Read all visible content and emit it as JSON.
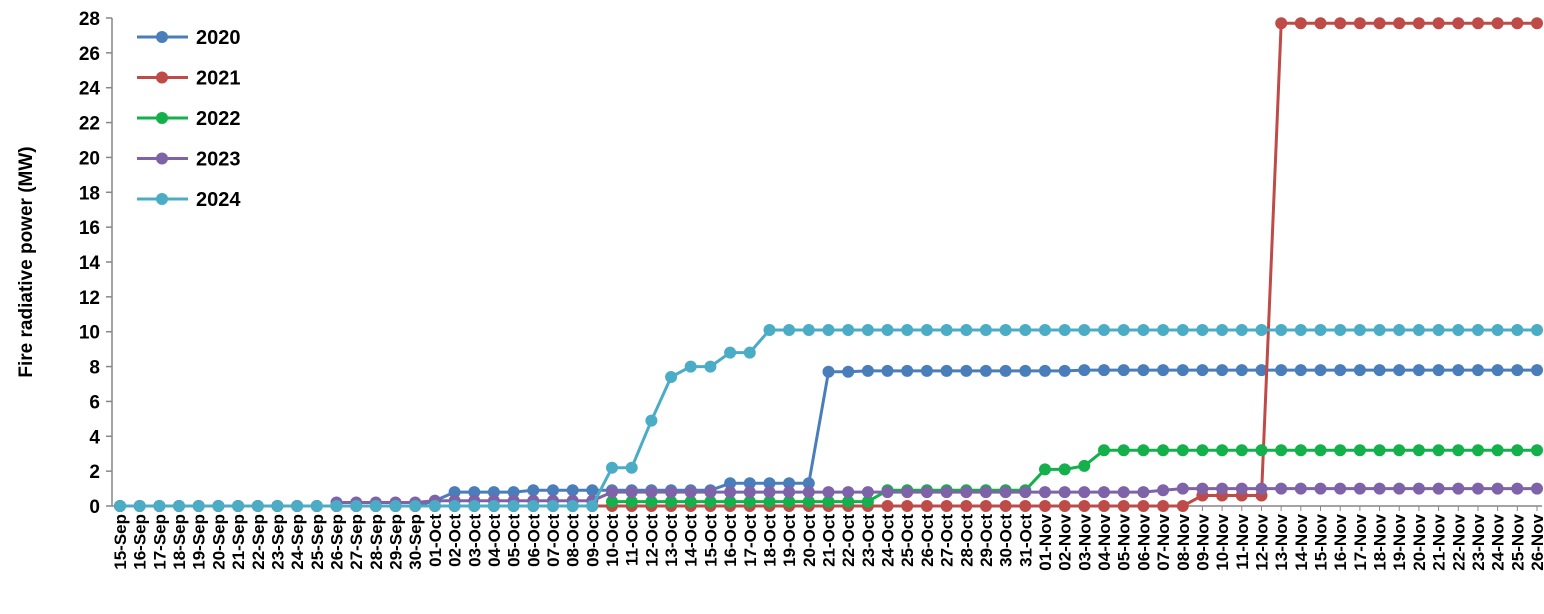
{
  "chart_data": {
    "type": "line",
    "title": "",
    "xlabel": "",
    "ylabel": "Fire radiative power (MW)",
    "ylim": [
      0,
      28
    ],
    "yticks": [
      0,
      2,
      4,
      6,
      8,
      10,
      12,
      14,
      16,
      18,
      20,
      22,
      24,
      26,
      28
    ],
    "grid": false,
    "legend_position": "top-left",
    "categories": [
      "15-Sep",
      "16-Sep",
      "17-Sep",
      "18-Sep",
      "19-Sep",
      "20-Sep",
      "21-Sep",
      "22-Sep",
      "23-Sep",
      "24-Sep",
      "25-Sep",
      "26-Sep",
      "27-Sep",
      "28-Sep",
      "29-Sep",
      "30-Sep",
      "01-Oct",
      "02-Oct",
      "03-Oct",
      "04-Oct",
      "05-Oct",
      "06-Oct",
      "07-Oct",
      "08-Oct",
      "09-Oct",
      "10-Oct",
      "11-Oct",
      "12-Oct",
      "13-Oct",
      "14-Oct",
      "15-Oct",
      "16-Oct",
      "17-Oct",
      "18-Oct",
      "19-Oct",
      "20-Oct",
      "21-Oct",
      "22-Oct",
      "23-Oct",
      "24-Oct",
      "25-Oct",
      "26-Oct",
      "27-Oct",
      "28-Oct",
      "29-Oct",
      "30-Oct",
      "31-Oct",
      "01-Nov",
      "02-Nov",
      "03-Nov",
      "04-Nov",
      "05-Nov",
      "06-Nov",
      "07-Nov",
      "08-Nov",
      "09-Nov",
      "10-Nov",
      "11-Nov",
      "12-Nov",
      "13-Nov",
      "14-Nov",
      "15-Nov",
      "16-Nov",
      "17-Nov",
      "18-Nov",
      "19-Nov",
      "20-Nov",
      "21-Nov",
      "22-Nov",
      "23-Nov",
      "24-Nov",
      "25-Nov",
      "26-Nov"
    ],
    "series": [
      {
        "name": "2020",
        "color": "#4a7ebb",
        "values": [
          0,
          0,
          0,
          0,
          0,
          0,
          0,
          0,
          0,
          0,
          0,
          0,
          0,
          0,
          0,
          0,
          0.3,
          0.8,
          0.8,
          0.8,
          0.8,
          0.9,
          0.9,
          0.9,
          0.9,
          0.9,
          0.9,
          0.9,
          0.9,
          0.9,
          0.9,
          1.3,
          1.3,
          1.3,
          1.3,
          1.3,
          7.7,
          7.7,
          7.75,
          7.75,
          7.75,
          7.75,
          7.75,
          7.75,
          7.75,
          7.75,
          7.75,
          7.75,
          7.75,
          7.8,
          7.8,
          7.8,
          7.8,
          7.8,
          7.8,
          7.8,
          7.8,
          7.8,
          7.8,
          7.8,
          7.8,
          7.8,
          7.8,
          7.8,
          7.8,
          7.8,
          7.8,
          7.8,
          7.8,
          7.8,
          7.8,
          7.8,
          7.8
        ]
      },
      {
        "name": "2021",
        "color": "#be4b48",
        "values": [
          0,
          0,
          0,
          0,
          0,
          0,
          0,
          0,
          0,
          0,
          0,
          0,
          0,
          0,
          0,
          0,
          0,
          0,
          0,
          0,
          0,
          0,
          0,
          0,
          0,
          0,
          0,
          0,
          0,
          0,
          0,
          0,
          0,
          0,
          0,
          0,
          0,
          0,
          0,
          0,
          0,
          0,
          0,
          0,
          0,
          0,
          0,
          0,
          0,
          0,
          0,
          0,
          0,
          0,
          0,
          0.6,
          0.6,
          0.6,
          0.6,
          27.7,
          27.7,
          27.7,
          27.7,
          27.7,
          27.7,
          27.7,
          27.7,
          27.7,
          27.7,
          27.7,
          27.7,
          27.7,
          27.7
        ]
      },
      {
        "name": "2022",
        "color": "#13b04b",
        "values": [
          null,
          null,
          null,
          null,
          null,
          null,
          null,
          null,
          null,
          null,
          null,
          null,
          null,
          null,
          null,
          null,
          null,
          null,
          null,
          null,
          null,
          null,
          null,
          null,
          null,
          0.25,
          0.25,
          0.25,
          0.25,
          0.25,
          0.25,
          0.25,
          0.25,
          0.25,
          0.25,
          0.25,
          0.25,
          0.25,
          0.25,
          0.9,
          0.9,
          0.9,
          0.9,
          0.9,
          0.9,
          0.9,
          0.9,
          2.1,
          2.1,
          2.3,
          3.2,
          3.2,
          3.2,
          3.2,
          3.2,
          3.2,
          3.2,
          3.2,
          3.2,
          3.2,
          3.2,
          3.2,
          3.2,
          3.2,
          3.2,
          3.2,
          3.2,
          3.2,
          3.2,
          3.2,
          3.2,
          3.2,
          3.2
        ]
      },
      {
        "name": "2023",
        "color": "#7f63a8",
        "values": [
          null,
          null,
          null,
          null,
          null,
          null,
          null,
          null,
          null,
          null,
          null,
          0.2,
          0.2,
          0.2,
          0.2,
          0.2,
          0.3,
          0.3,
          0.3,
          0.3,
          0.3,
          0.3,
          0.3,
          0.3,
          0.3,
          0.8,
          0.8,
          0.8,
          0.8,
          0.8,
          0.8,
          0.8,
          0.8,
          0.8,
          0.8,
          0.8,
          0.8,
          0.8,
          0.8,
          0.8,
          0.8,
          0.8,
          0.8,
          0.8,
          0.8,
          0.8,
          0.8,
          0.8,
          0.8,
          0.8,
          0.8,
          0.8,
          0.8,
          0.9,
          1.0,
          1.0,
          1.0,
          1.0,
          1.0,
          1.0,
          1.0,
          1.0,
          1.0,
          1.0,
          1.0,
          1.0,
          1.0,
          1.0,
          1.0,
          1.0,
          1.0,
          1.0,
          1.0
        ]
      },
      {
        "name": "2024",
        "color": "#4bacc6",
        "values": [
          0,
          0,
          0,
          0,
          0,
          0,
          0,
          0,
          0,
          0,
          0,
          0,
          0,
          0,
          0,
          0,
          0,
          0,
          0,
          0,
          0,
          0,
          0,
          0,
          0,
          2.2,
          2.2,
          4.9,
          7.4,
          8.0,
          8.0,
          8.8,
          8.8,
          10.1,
          10.1,
          10.1,
          10.1,
          10.1,
          10.1,
          10.1,
          10.1,
          10.1,
          10.1,
          10.1,
          10.1,
          10.1,
          10.1,
          10.1,
          10.1,
          10.1,
          10.1,
          10.1,
          10.1,
          10.1,
          10.1,
          10.1,
          10.1,
          10.1,
          10.1,
          10.1,
          10.1,
          10.1,
          10.1,
          10.1,
          10.1,
          10.1,
          10.1,
          10.1,
          10.1,
          10.1,
          10.1,
          10.1,
          10.1
        ]
      }
    ]
  }
}
